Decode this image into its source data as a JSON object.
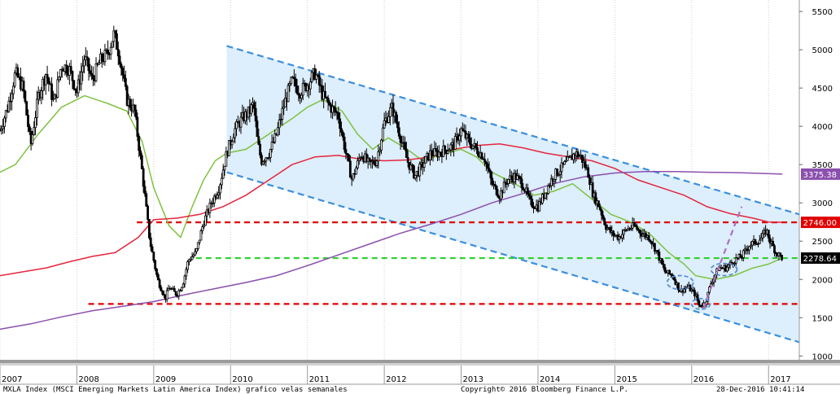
{
  "chart_data": {
    "type": "candlestick",
    "title": "MXLA Index (MSCI Emerging Markets Latin America Index) grafico velas semanales",
    "source": "Copyright© 2016 Bloomberg Finance L.P.",
    "timestamp": "28-Dec-2016 10:41:14",
    "x_range": [
      2007.0,
      2017.4
    ],
    "ylim": [
      950,
      5650
    ],
    "y_ticks": [
      1000,
      1500,
      2000,
      2500,
      3000,
      3500,
      4000,
      4500,
      5000,
      5500
    ],
    "x_ticks": [
      "2007",
      "2008",
      "2009",
      "2010",
      "2011",
      "2012",
      "2013",
      "2014",
      "2015",
      "2016",
      "2017"
    ],
    "price_path": [
      [
        2007.0,
        3950
      ],
      [
        2007.1,
        4250
      ],
      [
        2007.2,
        4700
      ],
      [
        2007.3,
        4500
      ],
      [
        2007.4,
        3750
      ],
      [
        2007.5,
        4400
      ],
      [
        2007.6,
        4700
      ],
      [
        2007.7,
        4300
      ],
      [
        2007.8,
        4800
      ],
      [
        2007.9,
        4750
      ],
      [
        2008.0,
        4450
      ],
      [
        2008.1,
        4900
      ],
      [
        2008.2,
        4600
      ],
      [
        2008.3,
        4850
      ],
      [
        2008.4,
        4950
      ],
      [
        2008.48,
        5200
      ],
      [
        2008.55,
        4950
      ],
      [
        2008.65,
        4350
      ],
      [
        2008.75,
        4200
      ],
      [
        2008.85,
        3400
      ],
      [
        2008.95,
        2500
      ],
      [
        2009.05,
        2000
      ],
      [
        2009.15,
        1750
      ],
      [
        2009.2,
        1900
      ],
      [
        2009.3,
        1800
      ],
      [
        2009.38,
        1950
      ],
      [
        2009.45,
        2250
      ],
      [
        2009.55,
        2350
      ],
      [
        2009.65,
        2750
      ],
      [
        2009.75,
        3000
      ],
      [
        2009.85,
        3200
      ],
      [
        2009.95,
        3650
      ],
      [
        2010.05,
        3950
      ],
      [
        2010.15,
        4100
      ],
      [
        2010.25,
        4200
      ],
      [
        2010.3,
        4300
      ],
      [
        2010.35,
        3800
      ],
      [
        2010.4,
        3550
      ],
      [
        2010.5,
        3650
      ],
      [
        2010.6,
        3900
      ],
      [
        2010.7,
        4300
      ],
      [
        2010.8,
        4600
      ],
      [
        2010.9,
        4450
      ],
      [
        2011.0,
        4550
      ],
      [
        2011.1,
        4700
      ],
      [
        2011.2,
        4400
      ],
      [
        2011.3,
        4250
      ],
      [
        2011.4,
        4150
      ],
      [
        2011.5,
        3650
      ],
      [
        2011.58,
        3300
      ],
      [
        2011.7,
        3650
      ],
      [
        2011.8,
        3500
      ],
      [
        2011.9,
        3550
      ],
      [
        2012.0,
        4050
      ],
      [
        2012.1,
        4250
      ],
      [
        2012.2,
        3900
      ],
      [
        2012.3,
        3550
      ],
      [
        2012.4,
        3350
      ],
      [
        2012.5,
        3500
      ],
      [
        2012.6,
        3650
      ],
      [
        2012.7,
        3650
      ],
      [
        2012.8,
        3700
      ],
      [
        2012.9,
        3750
      ],
      [
        2013.0,
        3950
      ],
      [
        2013.1,
        3800
      ],
      [
        2013.2,
        3700
      ],
      [
        2013.3,
        3600
      ],
      [
        2013.4,
        3250
      ],
      [
        2013.5,
        3100
      ],
      [
        2013.6,
        3300
      ],
      [
        2013.7,
        3350
      ],
      [
        2013.8,
        3250
      ],
      [
        2013.9,
        3000
      ],
      [
        2014.0,
        2950
      ],
      [
        2014.1,
        3150
      ],
      [
        2014.2,
        3350
      ],
      [
        2014.3,
        3450
      ],
      [
        2014.4,
        3550
      ],
      [
        2014.48,
        3650
      ],
      [
        2014.56,
        3600
      ],
      [
        2014.65,
        3400
      ],
      [
        2014.72,
        3100
      ],
      [
        2014.8,
        2950
      ],
      [
        2014.88,
        2700
      ],
      [
        2014.96,
        2600
      ],
      [
        2015.05,
        2550
      ],
      [
        2015.15,
        2650
      ],
      [
        2015.25,
        2700
      ],
      [
        2015.35,
        2600
      ],
      [
        2015.45,
        2550
      ],
      [
        2015.55,
        2350
      ],
      [
        2015.65,
        2100
      ],
      [
        2015.75,
        2050
      ],
      [
        2015.85,
        1850
      ],
      [
        2015.95,
        1900
      ],
      [
        2016.05,
        1800
      ],
      [
        2016.1,
        1650
      ],
      [
        2016.18,
        1700
      ],
      [
        2016.25,
        1950
      ],
      [
        2016.35,
        2150
      ],
      [
        2016.45,
        2150
      ],
      [
        2016.55,
        2250
      ],
      [
        2016.65,
        2300
      ],
      [
        2016.75,
        2450
      ],
      [
        2016.85,
        2500
      ],
      [
        2016.92,
        2550
      ],
      [
        2016.97,
        2650
      ],
      [
        2017.02,
        2500
      ],
      [
        2017.1,
        2350
      ],
      [
        2017.18,
        2280
      ]
    ],
    "series": [
      {
        "name": "",
        "color": "#7fc241",
        "points": [
          [
            2007.0,
            3400
          ],
          [
            2007.2,
            3500
          ],
          [
            2007.5,
            3900
          ],
          [
            2007.8,
            4250
          ],
          [
            2008.1,
            4400
          ],
          [
            2008.4,
            4300
          ],
          [
            2008.65,
            4200
          ],
          [
            2008.85,
            3800
          ],
          [
            2009.0,
            3200
          ],
          [
            2009.2,
            2700
          ],
          [
            2009.35,
            2550
          ],
          [
            2009.5,
            2950
          ],
          [
            2009.65,
            3300
          ],
          [
            2009.8,
            3550
          ],
          [
            2009.95,
            3650
          ],
          [
            2010.2,
            3700
          ],
          [
            2010.5,
            3900
          ],
          [
            2010.8,
            4100
          ],
          [
            2011.0,
            4250
          ],
          [
            2011.2,
            4350
          ],
          [
            2011.45,
            4200
          ],
          [
            2011.65,
            3900
          ],
          [
            2011.85,
            3700
          ],
          [
            2012.05,
            3850
          ],
          [
            2012.3,
            3700
          ],
          [
            2012.5,
            3550
          ],
          [
            2012.8,
            3650
          ],
          [
            2013.0,
            3700
          ],
          [
            2013.2,
            3600
          ],
          [
            2013.4,
            3400
          ],
          [
            2013.7,
            3250
          ],
          [
            2013.95,
            3100
          ],
          [
            2014.2,
            3150
          ],
          [
            2014.45,
            3250
          ],
          [
            2014.7,
            3050
          ],
          [
            2014.95,
            2850
          ],
          [
            2015.2,
            2750
          ],
          [
            2015.45,
            2600
          ],
          [
            2015.7,
            2350
          ],
          [
            2015.9,
            2200
          ],
          [
            2016.05,
            2050
          ],
          [
            2016.3,
            2000
          ],
          [
            2016.55,
            2050
          ],
          [
            2016.8,
            2150
          ],
          [
            2017.0,
            2200
          ],
          [
            2017.18,
            2280
          ]
        ]
      },
      {
        "name": "",
        "color": "#e4263c",
        "points": [
          [
            2007.0,
            2050
          ],
          [
            2007.3,
            2100
          ],
          [
            2007.6,
            2150
          ],
          [
            2007.9,
            2230
          ],
          [
            2008.2,
            2300
          ],
          [
            2008.5,
            2350
          ],
          [
            2008.8,
            2550
          ],
          [
            2009.0,
            2780
          ],
          [
            2009.3,
            2800
          ],
          [
            2009.6,
            2850
          ],
          [
            2009.9,
            2950
          ],
          [
            2010.2,
            3100
          ],
          [
            2010.5,
            3300
          ],
          [
            2010.8,
            3500
          ],
          [
            2011.1,
            3600
          ],
          [
            2011.4,
            3620
          ],
          [
            2011.7,
            3570
          ],
          [
            2012.0,
            3550
          ],
          [
            2012.3,
            3560
          ],
          [
            2012.6,
            3600
          ],
          [
            2012.9,
            3700
          ],
          [
            2013.2,
            3750
          ],
          [
            2013.5,
            3770
          ],
          [
            2013.8,
            3720
          ],
          [
            2014.1,
            3650
          ],
          [
            2014.4,
            3600
          ],
          [
            2014.7,
            3550
          ],
          [
            2015.0,
            3450
          ],
          [
            2015.3,
            3300
          ],
          [
            2015.6,
            3200
          ],
          [
            2015.9,
            3100
          ],
          [
            2016.2,
            2950
          ],
          [
            2016.5,
            2860
          ],
          [
            2016.8,
            2800
          ],
          [
            2017.0,
            2750
          ],
          [
            2017.18,
            2746
          ]
        ]
      },
      {
        "name": "",
        "color": "#8b4fad",
        "points": [
          [
            2007.0,
            1350
          ],
          [
            2007.4,
            1420
          ],
          [
            2007.8,
            1510
          ],
          [
            2008.2,
            1590
          ],
          [
            2008.6,
            1650
          ],
          [
            2009.0,
            1710
          ],
          [
            2009.4,
            1800
          ],
          [
            2009.8,
            1880
          ],
          [
            2010.2,
            1960
          ],
          [
            2010.6,
            2050
          ],
          [
            2011.0,
            2180
          ],
          [
            2011.4,
            2320
          ],
          [
            2011.8,
            2460
          ],
          [
            2012.2,
            2600
          ],
          [
            2012.6,
            2720
          ],
          [
            2013.0,
            2850
          ],
          [
            2013.4,
            3000
          ],
          [
            2013.8,
            3120
          ],
          [
            2014.2,
            3250
          ],
          [
            2014.6,
            3340
          ],
          [
            2015.0,
            3390
          ],
          [
            2015.4,
            3410
          ],
          [
            2015.8,
            3410
          ],
          [
            2016.2,
            3400
          ],
          [
            2016.6,
            3395
          ],
          [
            2016.9,
            3385
          ],
          [
            2017.18,
            3375
          ]
        ]
      }
    ],
    "channel": {
      "upper": [
        [
          2009.95,
          5050
        ],
        [
          2017.4,
          2850
        ]
      ],
      "lower": [
        [
          2009.95,
          3400
        ],
        [
          2017.4,
          1180
        ]
      ]
    },
    "horizontal_levels": [
      {
        "value": 2746.0,
        "color": "#e00000",
        "x_start": 2008.78,
        "label": "2746.00"
      },
      {
        "value": 2278.64,
        "color": "#2fd12f",
        "x_start": 2009.55,
        "label": "2278.64"
      },
      {
        "value": 1680,
        "color": "#e00000",
        "x_start": 2008.15,
        "label": ""
      }
    ],
    "price_label": {
      "value": 2278.64,
      "text": "2278.64"
    },
    "ma_label": {
      "value": 3375.38,
      "text": "3375.38"
    },
    "trend_arrow": [
      [
        2016.15,
        1620
      ],
      [
        2016.65,
        2950
      ]
    ],
    "ellipses": [
      {
        "cx": 2015.85,
        "cy": 1960,
        "rx": 0.17,
        "ry": 90
      },
      {
        "cx": 2016.12,
        "cy": 1680,
        "rx": 0.12,
        "ry": 70
      },
      {
        "cx": 2016.42,
        "cy": 2130,
        "rx": 0.17,
        "ry": 80
      }
    ],
    "shading_color": "#ddeefc",
    "channel_color": "#3b8fdc"
  }
}
